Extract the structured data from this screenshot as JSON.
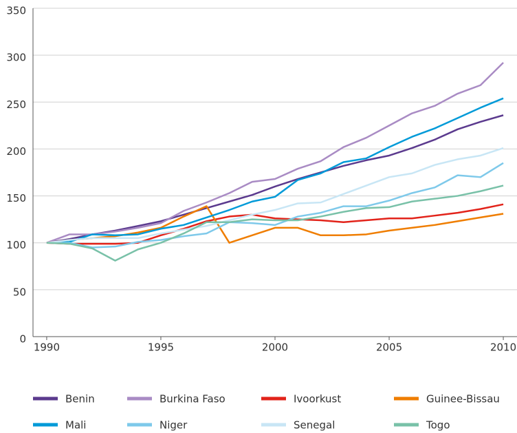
{
  "chart_data": {
    "type": "line",
    "x": [
      1990,
      1991,
      1992,
      1993,
      1994,
      1995,
      1996,
      1997,
      1998,
      1999,
      2000,
      2001,
      2002,
      2003,
      2004,
      2005,
      2006,
      2007,
      2008,
      2009,
      2010
    ],
    "series": [
      {
        "name": "Benin",
        "color": "#5b3a8e",
        "values": [
          100,
          104,
          109,
          113,
          118,
          123,
          130,
          137,
          144,
          151,
          160,
          168,
          175,
          182,
          188,
          193,
          201,
          210,
          221,
          229,
          236
        ]
      },
      {
        "name": "Burkina Faso",
        "color": "#a98bc4",
        "values": [
          100,
          109,
          109,
          112,
          116,
          121,
          134,
          143,
          153,
          165,
          168,
          179,
          187,
          202,
          212,
          225,
          238,
          246,
          259,
          268,
          292
        ]
      },
      {
        "name": "Ivoorkust",
        "color": "#e2231a",
        "values": [
          100,
          99,
          99,
          99,
          100,
          108,
          115,
          123,
          128,
          130,
          126,
          125,
          124,
          122,
          124,
          126,
          126,
          129,
          132,
          136,
          141
        ]
      },
      {
        "name": "Guinee-Bissau",
        "color": "#ef7d00",
        "values": [
          100,
          103,
          105,
          107,
          111,
          116,
          128,
          139,
          100,
          108,
          116,
          116,
          108,
          108,
          109,
          113,
          116,
          119,
          123,
          127,
          131
        ]
      },
      {
        "name": "Mali",
        "color": "#009ad8",
        "values": [
          100,
          101,
          109,
          108,
          109,
          115,
          119,
          127,
          135,
          144,
          149,
          167,
          174,
          186,
          190,
          202,
          213,
          222,
          233,
          244,
          254
        ]
      },
      {
        "name": "Niger",
        "color": "#7ec9ea",
        "values": [
          100,
          100,
          95,
          96,
          101,
          103,
          107,
          110,
          122,
          121,
          119,
          128,
          132,
          139,
          139,
          145,
          153,
          159,
          172,
          170,
          185
        ]
      },
      {
        "name": "Senegal",
        "color": "#c8e6f5",
        "values": [
          100,
          103,
          105,
          105,
          105,
          110,
          114,
          118,
          124,
          130,
          135,
          142,
          143,
          152,
          161,
          170,
          174,
          183,
          189,
          193,
          201
        ]
      },
      {
        "name": "Togo",
        "color": "#79c1a8",
        "values": [
          100,
          99,
          94,
          81,
          93,
          100,
          110,
          122,
          122,
          125,
          124,
          124,
          128,
          133,
          137,
          138,
          144,
          147,
          150,
          155,
          161
        ]
      }
    ],
    "xlim": [
      1989.4,
      2010.6
    ],
    "xticks": [
      1990,
      1995,
      2000,
      2005,
      2010
    ],
    "ylim": [
      0,
      350
    ],
    "yticks": [
      0,
      50,
      100,
      150,
      200,
      250,
      300,
      350
    ],
    "grid": true,
    "legend": "bottom"
  }
}
